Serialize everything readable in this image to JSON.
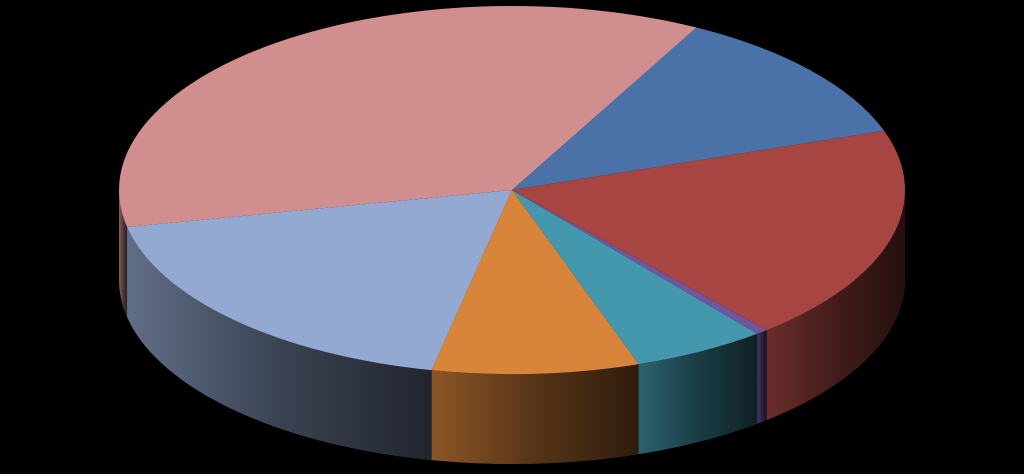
{
  "chart_data": {
    "type": "pie",
    "style": "3d-exploded-none",
    "title": "",
    "legend": "none",
    "background": "#000000",
    "slices": [
      {
        "value": 12.0,
        "color": "#4A72A8"
      },
      {
        "value": 19.0,
        "color": "#A64541"
      },
      {
        "value": 0.5,
        "color": "#6E56A0"
      },
      {
        "value": 5.5,
        "color": "#4498AE"
      },
      {
        "value": 8.5,
        "color": "#D9843B"
      },
      {
        "value": 18.5,
        "color": "#94A9D1"
      },
      {
        "value": 36.0,
        "color": "#D08E8E"
      }
    ]
  }
}
